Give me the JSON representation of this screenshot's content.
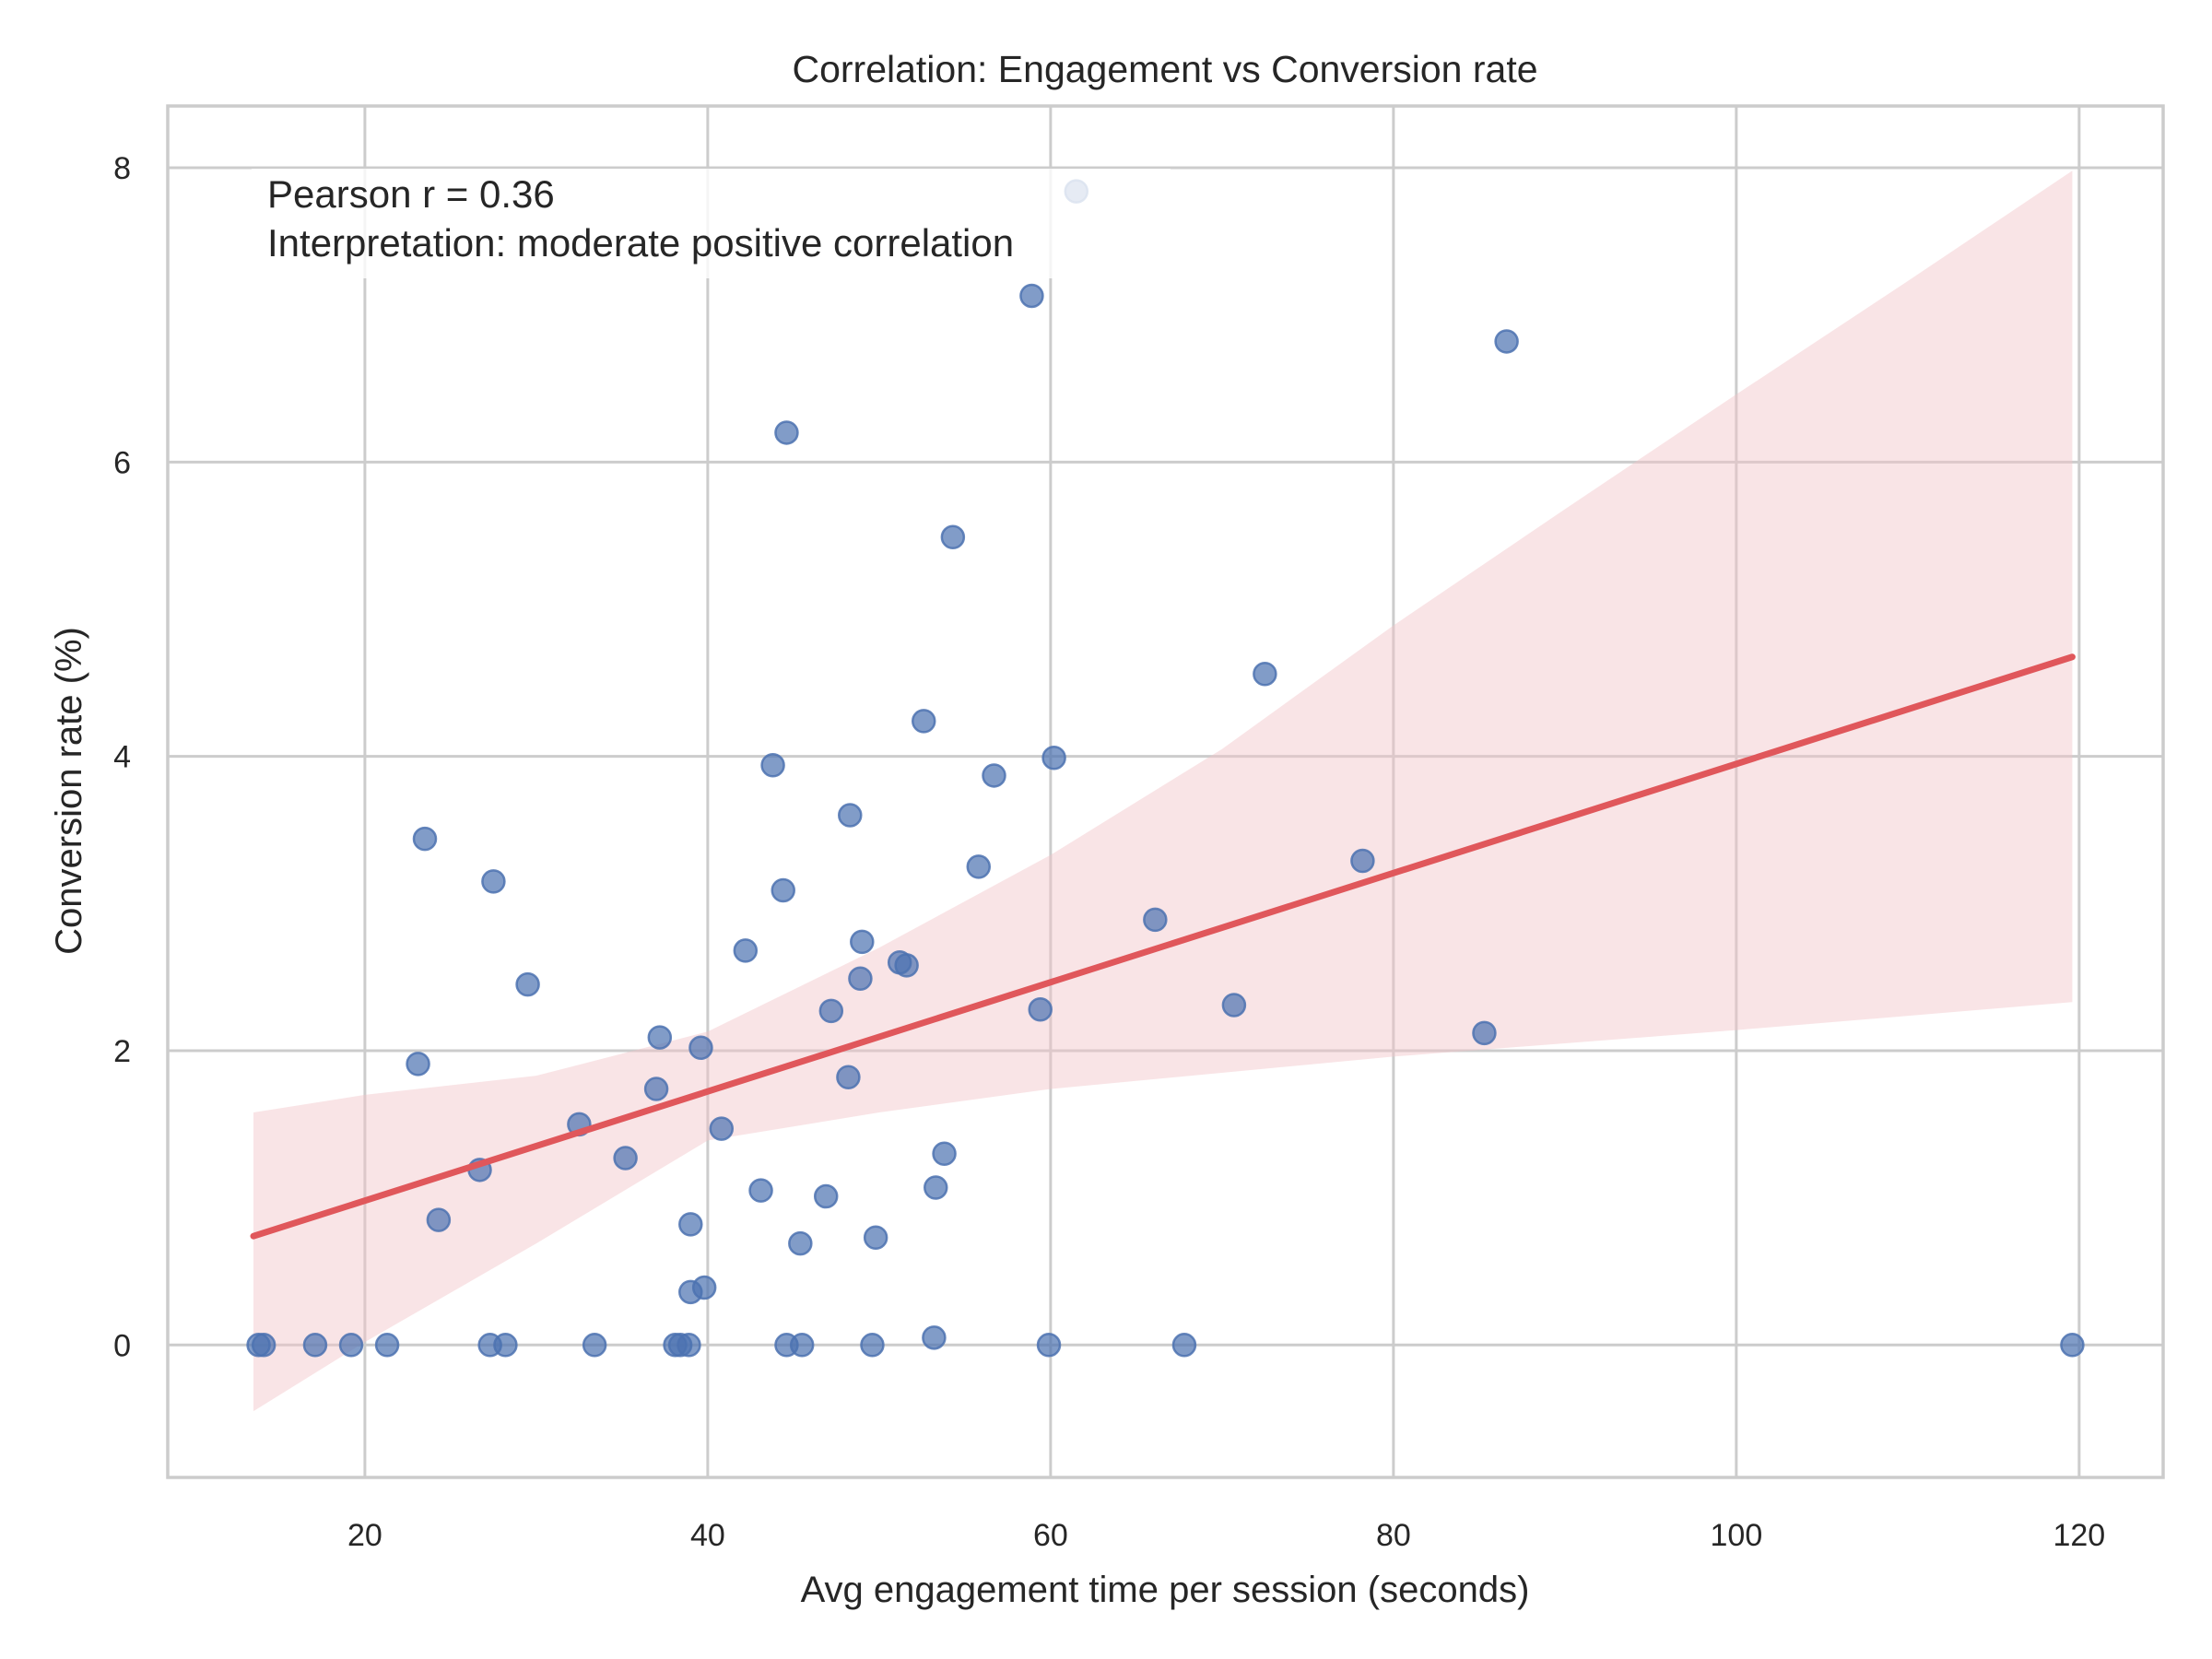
{
  "chart_data": {
    "type": "scatter",
    "title": "Correlation: Engagement vs Conversion rate",
    "xlabel": "Avg engagement time per session (seconds)",
    "ylabel": "Conversion rate (%)",
    "xlim": [
      8.5,
      124.9
    ],
    "ylim": [
      -0.9,
      8.42
    ],
    "xticks": [
      20,
      40,
      60,
      80,
      100,
      120
    ],
    "yticks": [
      0,
      2,
      4,
      6,
      8
    ],
    "xtick_labels": [
      "20",
      "40",
      "60",
      "80",
      "100",
      "120"
    ],
    "ytick_labels": [
      "0",
      "2",
      "4",
      "6",
      "8"
    ],
    "grid": true,
    "colors": {
      "points": "#4c72b0",
      "regression_line": "#e0575b",
      "confidence_band": "#f2c4c8",
      "grid": "#cccccc",
      "text": "#262626"
    },
    "series": [
      {
        "name": "sessions",
        "points": [
          [
            13.8,
            0
          ],
          [
            14.1,
            0
          ],
          [
            17.1,
            0
          ],
          [
            19.2,
            0
          ],
          [
            21.3,
            0
          ],
          [
            27.3,
            0
          ],
          [
            28.2,
            0
          ],
          [
            33.4,
            0
          ],
          [
            38.1,
            0
          ],
          [
            38.4,
            0
          ],
          [
            38.9,
            0
          ],
          [
            44.6,
            0
          ],
          [
            45.5,
            0
          ],
          [
            49.6,
            0
          ],
          [
            59.9,
            0
          ],
          [
            67.8,
            0
          ],
          [
            119.6,
            0
          ],
          [
            53.2,
            0.05
          ],
          [
            39.0,
            0.36
          ],
          [
            39.8,
            0.39
          ],
          [
            45.4,
            0.69
          ],
          [
            49.8,
            0.73
          ],
          [
            39.0,
            0.82
          ],
          [
            24.3,
            0.85
          ],
          [
            46.9,
            1.01
          ],
          [
            43.1,
            1.05
          ],
          [
            53.3,
            1.07
          ],
          [
            26.7,
            1.19
          ],
          [
            35.2,
            1.27
          ],
          [
            53.8,
            1.3
          ],
          [
            40.8,
            1.47
          ],
          [
            32.5,
            1.5
          ],
          [
            37.0,
            1.74
          ],
          [
            48.2,
            1.82
          ],
          [
            23.1,
            1.91
          ],
          [
            39.6,
            2.02
          ],
          [
            37.2,
            2.09
          ],
          [
            85.3,
            2.12
          ],
          [
            47.2,
            2.27
          ],
          [
            59.4,
            2.28
          ],
          [
            70.7,
            2.31
          ],
          [
            29.5,
            2.45
          ],
          [
            48.9,
            2.49
          ],
          [
            51.6,
            2.58
          ],
          [
            51.2,
            2.6
          ],
          [
            42.2,
            2.68
          ],
          [
            49.0,
            2.74
          ],
          [
            66.1,
            2.89
          ],
          [
            44.4,
            3.09
          ],
          [
            27.5,
            3.15
          ],
          [
            55.8,
            3.25
          ],
          [
            78.2,
            3.29
          ],
          [
            23.5,
            3.44
          ],
          [
            48.3,
            3.6
          ],
          [
            56.7,
            3.87
          ],
          [
            43.8,
            3.94
          ],
          [
            60.2,
            3.99
          ],
          [
            52.6,
            4.24
          ],
          [
            72.5,
            4.56
          ],
          [
            54.3,
            5.49
          ],
          [
            44.6,
            6.2
          ],
          [
            86.6,
            6.82
          ],
          [
            58.9,
            7.13
          ],
          [
            61.5,
            7.84
          ]
        ]
      }
    ],
    "regression": {
      "x_range": [
        13.5,
        119.6
      ],
      "slope": 0.0371,
      "intercept": 0.239,
      "ci_upper": [
        [
          13.5,
          1.58
        ],
        [
          20,
          1.7
        ],
        [
          30,
          1.83
        ],
        [
          40,
          2.13
        ],
        [
          50,
          2.7
        ],
        [
          60,
          3.33
        ],
        [
          70,
          4.05
        ],
        [
          80,
          4.89
        ],
        [
          90,
          5.68
        ],
        [
          100,
          6.46
        ],
        [
          110,
          7.23
        ],
        [
          119.6,
          7.98
        ]
      ],
      "ci_lower": [
        [
          13.5,
          -0.45
        ],
        [
          20,
          0.02
        ],
        [
          30,
          0.69
        ],
        [
          40,
          1.39
        ],
        [
          50,
          1.58
        ],
        [
          60,
          1.74
        ],
        [
          80,
          1.96
        ],
        [
          100,
          2.14
        ],
        [
          119.6,
          2.33
        ]
      ]
    },
    "annotation": {
      "lines": [
        "Pearson r = 0.36",
        "Interpretation: moderate positive correlation"
      ],
      "placement": "top-left"
    }
  }
}
